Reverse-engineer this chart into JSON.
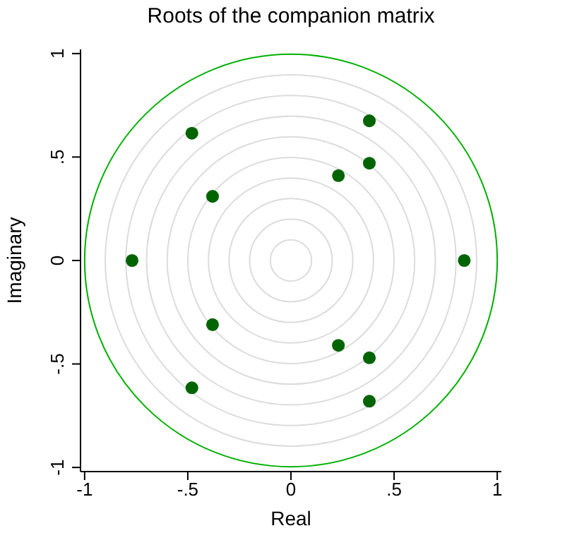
{
  "chart_data": {
    "type": "scatter",
    "title": "Roots of the companion matrix",
    "xlabel": "Real",
    "ylabel": "Imaginary",
    "xlim": [
      -1.02,
      1.02
    ],
    "ylim": [
      -1.02,
      1.02
    ],
    "xticks": [
      {
        "value": -1,
        "label": "-1"
      },
      {
        "value": -0.5,
        "label": "-.5"
      },
      0,
      {
        "value": 0.5,
        "label": ".5"
      },
      1
    ],
    "yticks": [
      {
        "value": -1,
        "label": "-1"
      },
      {
        "value": -0.5,
        "label": "-.5"
      },
      0,
      {
        "value": 0.5,
        "label": ".5"
      },
      1
    ],
    "marker": "circle",
    "series": [
      {
        "color": "#006400",
        "x": [
          0.38,
          -0.48,
          0.38,
          0.23,
          -0.38,
          -0.77,
          0.84,
          -0.38,
          0.23,
          0.38,
          -0.48,
          0.38
        ],
        "values": [
          0.675,
          0.615,
          0.47,
          0.41,
          0.31,
          0,
          0,
          -0.31,
          -0.41,
          -0.47,
          -0.615,
          -0.68
        ]
      }
    ]
  }
}
